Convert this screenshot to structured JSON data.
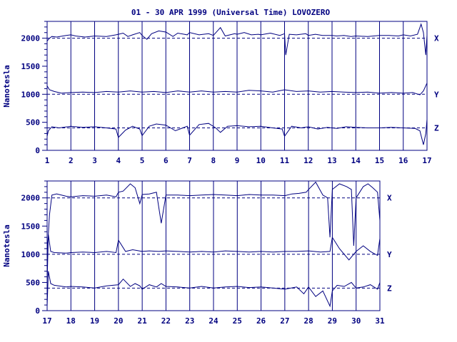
{
  "title": "01 - 30 APR 1999 (Universal Time) LOVOZERO",
  "chart_data": [
    {
      "type": "line",
      "panel": "top",
      "ylabel": "Nanotesla",
      "xlabel": "",
      "x_ticks": [
        "1",
        "2",
        "3",
        "4",
        "5",
        "6",
        "7",
        "8",
        "9",
        "10",
        "11",
        "12",
        "13",
        "14",
        "15",
        "16",
        "17"
      ],
      "xlim": [
        1,
        17
      ],
      "ylim": [
        0,
        2300
      ],
      "y_ticks": [
        0,
        500,
        1000,
        1500,
        2000
      ],
      "grid": "vertical lines at each day",
      "series": [
        {
          "name": "X",
          "baseline": 2000,
          "x": [
            1.0,
            1.1,
            1.2,
            1.4,
            1.8,
            2.0,
            2.2,
            2.6,
            3.0,
            3.5,
            3.9,
            4.0,
            4.2,
            4.4,
            4.6,
            4.9,
            5.0,
            5.2,
            5.4,
            5.7,
            6.0,
            6.3,
            6.5,
            6.9,
            7.0,
            7.4,
            7.8,
            8.0,
            8.3,
            8.5,
            8.9,
            9.0,
            9.3,
            9.6,
            9.9,
            10.0,
            10.4,
            10.8,
            11.0,
            11.05,
            11.2,
            11.5,
            11.9,
            12.0,
            12.3,
            12.6,
            12.9,
            13.0,
            13.2,
            13.5,
            13.8,
            14.0,
            14.5,
            15.0,
            15.4,
            15.8,
            16.0,
            16.3,
            16.6,
            16.75,
            16.85,
            16.95,
            17.0
          ],
          "values": [
            1950,
            2000,
            2030,
            2020,
            2050,
            2060,
            2040,
            2020,
            2040,
            2030,
            2060,
            2070,
            2090,
            2030,
            2060,
            2100,
            2050,
            1980,
            2080,
            2130,
            2110,
            2030,
            2090,
            2060,
            2100,
            2060,
            2080,
            2050,
            2190,
            2040,
            2080,
            2070,
            2100,
            2060,
            2070,
            2060,
            2090,
            2050,
            2080,
            1700,
            2070,
            2060,
            2080,
            2050,
            2070,
            2050,
            2050,
            2050,
            2040,
            2050,
            2030,
            2040,
            2030,
            2050,
            2050,
            2040,
            2060,
            2040,
            2070,
            2250,
            2100,
            1700,
            2050
          ]
        },
        {
          "name": "Y",
          "baseline": 1000,
          "x": [
            1.0,
            1.1,
            1.3,
            1.6,
            2.0,
            2.5,
            3.0,
            3.5,
            4.0,
            4.5,
            5.0,
            5.5,
            6.0,
            6.5,
            7.0,
            7.5,
            8.0,
            8.5,
            9.0,
            9.5,
            10.0,
            10.5,
            11.0,
            11.5,
            12.0,
            12.5,
            13.0,
            13.5,
            14.0,
            14.5,
            15.0,
            15.5,
            16.0,
            16.4,
            16.7,
            16.85,
            17.0
          ],
          "values": [
            1150,
            1080,
            1050,
            1020,
            1030,
            1040,
            1030,
            1050,
            1040,
            1060,
            1040,
            1050,
            1030,
            1060,
            1040,
            1060,
            1040,
            1050,
            1040,
            1070,
            1060,
            1040,
            1080,
            1050,
            1060,
            1040,
            1050,
            1040,
            1030,
            1040,
            1020,
            1030,
            1020,
            1030,
            990,
            1060,
            1200
          ]
        },
        {
          "name": "Z",
          "baseline": 400,
          "x": [
            1.0,
            1.05,
            1.2,
            1.5,
            2.0,
            2.5,
            3.0,
            3.5,
            3.9,
            4.0,
            4.3,
            4.6,
            4.9,
            5.0,
            5.3,
            5.6,
            6.0,
            6.4,
            6.9,
            7.0,
            7.4,
            7.8,
            8.1,
            8.3,
            8.6,
            9.0,
            9.5,
            10.0,
            10.5,
            10.9,
            11.0,
            11.3,
            11.7,
            12.0,
            12.4,
            12.8,
            13.2,
            13.6,
            14.0,
            14.5,
            15.0,
            15.5,
            16.0,
            16.5,
            16.7,
            16.85,
            16.95,
            17.0
          ],
          "values": [
            250,
            350,
            420,
            400,
            430,
            410,
            420,
            400,
            380,
            230,
            360,
            430,
            380,
            260,
            430,
            470,
            450,
            350,
            430,
            270,
            460,
            480,
            400,
            320,
            430,
            440,
            420,
            430,
            400,
            380,
            250,
            430,
            400,
            420,
            380,
            410,
            390,
            420,
            410,
            400,
            400,
            410,
            400,
            390,
            350,
            100,
            300,
            550
          ]
        }
      ]
    },
    {
      "type": "line",
      "panel": "bottom",
      "ylabel": "Nanotesla",
      "xlabel": "",
      "x_ticks": [
        "17",
        "18",
        "19",
        "20",
        "21",
        "22",
        "23",
        "24",
        "25",
        "26",
        "27",
        "28",
        "29",
        "30",
        "31"
      ],
      "xlim": [
        17,
        31
      ],
      "ylim": [
        0,
        2300
      ],
      "y_ticks": [
        0,
        500,
        1000,
        1500,
        2000
      ],
      "grid": "vertical lines at each day",
      "series": [
        {
          "name": "X",
          "baseline": 2000,
          "x": [
            17.0,
            17.1,
            17.2,
            17.4,
            17.8,
            18.0,
            18.5,
            19.0,
            19.5,
            19.9,
            20.0,
            20.2,
            20.5,
            20.7,
            20.9,
            21.0,
            21.3,
            21.6,
            21.8,
            22.0,
            22.5,
            23.0,
            23.5,
            24.0,
            24.5,
            25.0,
            25.5,
            26.0,
            26.5,
            27.0,
            27.3,
            27.6,
            27.9,
            28.0,
            28.3,
            28.6,
            28.8,
            28.9,
            29.0,
            29.3,
            29.6,
            29.8,
            29.9,
            30.0,
            30.3,
            30.5,
            30.7,
            30.9,
            31.0
          ],
          "values": [
            1000,
            1700,
            2050,
            2070,
            2030,
            2020,
            2040,
            2030,
            2050,
            2020,
            2100,
            2120,
            2250,
            2180,
            1900,
            2060,
            2070,
            2100,
            1550,
            2050,
            2050,
            2040,
            2050,
            2060,
            2050,
            2040,
            2060,
            2050,
            2050,
            2040,
            2070,
            2080,
            2100,
            2150,
            2280,
            2050,
            2000,
            1300,
            2150,
            2250,
            2200,
            2150,
            1150,
            2000,
            2200,
            2250,
            2180,
            2100,
            1600
          ]
        },
        {
          "name": "Y",
          "baseline": 1000,
          "x": [
            17.0,
            17.05,
            17.15,
            17.3,
            17.8,
            18.0,
            18.5,
            19.0,
            19.5,
            19.9,
            20.0,
            20.3,
            20.6,
            21.0,
            21.3,
            21.7,
            22.0,
            22.5,
            23.0,
            23.5,
            24.0,
            24.5,
            25.0,
            25.5,
            26.0,
            26.5,
            27.0,
            27.5,
            28.0,
            28.5,
            28.9,
            29.0,
            29.3,
            29.7,
            30.0,
            30.3,
            30.6,
            30.9,
            31.0
          ],
          "values": [
            500,
            1350,
            1050,
            1030,
            1020,
            1030,
            1040,
            1030,
            1050,
            1030,
            1250,
            1050,
            1080,
            1050,
            1060,
            1050,
            1060,
            1050,
            1040,
            1050,
            1040,
            1060,
            1050,
            1040,
            1050,
            1040,
            1050,
            1050,
            1060,
            1040,
            1050,
            1300,
            1100,
            900,
            1050,
            1150,
            1050,
            980,
            1280
          ]
        },
        {
          "name": "Z",
          "baseline": 400,
          "x": [
            17.0,
            17.05,
            17.15,
            17.3,
            17.8,
            18.0,
            18.5,
            19.0,
            19.5,
            20.0,
            20.2,
            20.5,
            20.7,
            20.9,
            21.0,
            21.3,
            21.6,
            21.8,
            22.0,
            22.5,
            23.0,
            23.5,
            24.0,
            24.5,
            25.0,
            25.5,
            26.0,
            26.5,
            27.0,
            27.5,
            27.8,
            28.0,
            28.3,
            28.6,
            28.9,
            29.0,
            29.2,
            29.5,
            29.8,
            30.0,
            30.3,
            30.6,
            30.9,
            31.0
          ],
          "values": [
            80,
            700,
            480,
            450,
            420,
            430,
            420,
            400,
            440,
            460,
            560,
            430,
            480,
            440,
            380,
            460,
            420,
            480,
            430,
            420,
            400,
            430,
            400,
            420,
            430,
            410,
            420,
            400,
            380,
            420,
            300,
            420,
            250,
            350,
            80,
            350,
            450,
            430,
            500,
            400,
            420,
            460,
            380,
            500
          ]
        }
      ]
    }
  ]
}
